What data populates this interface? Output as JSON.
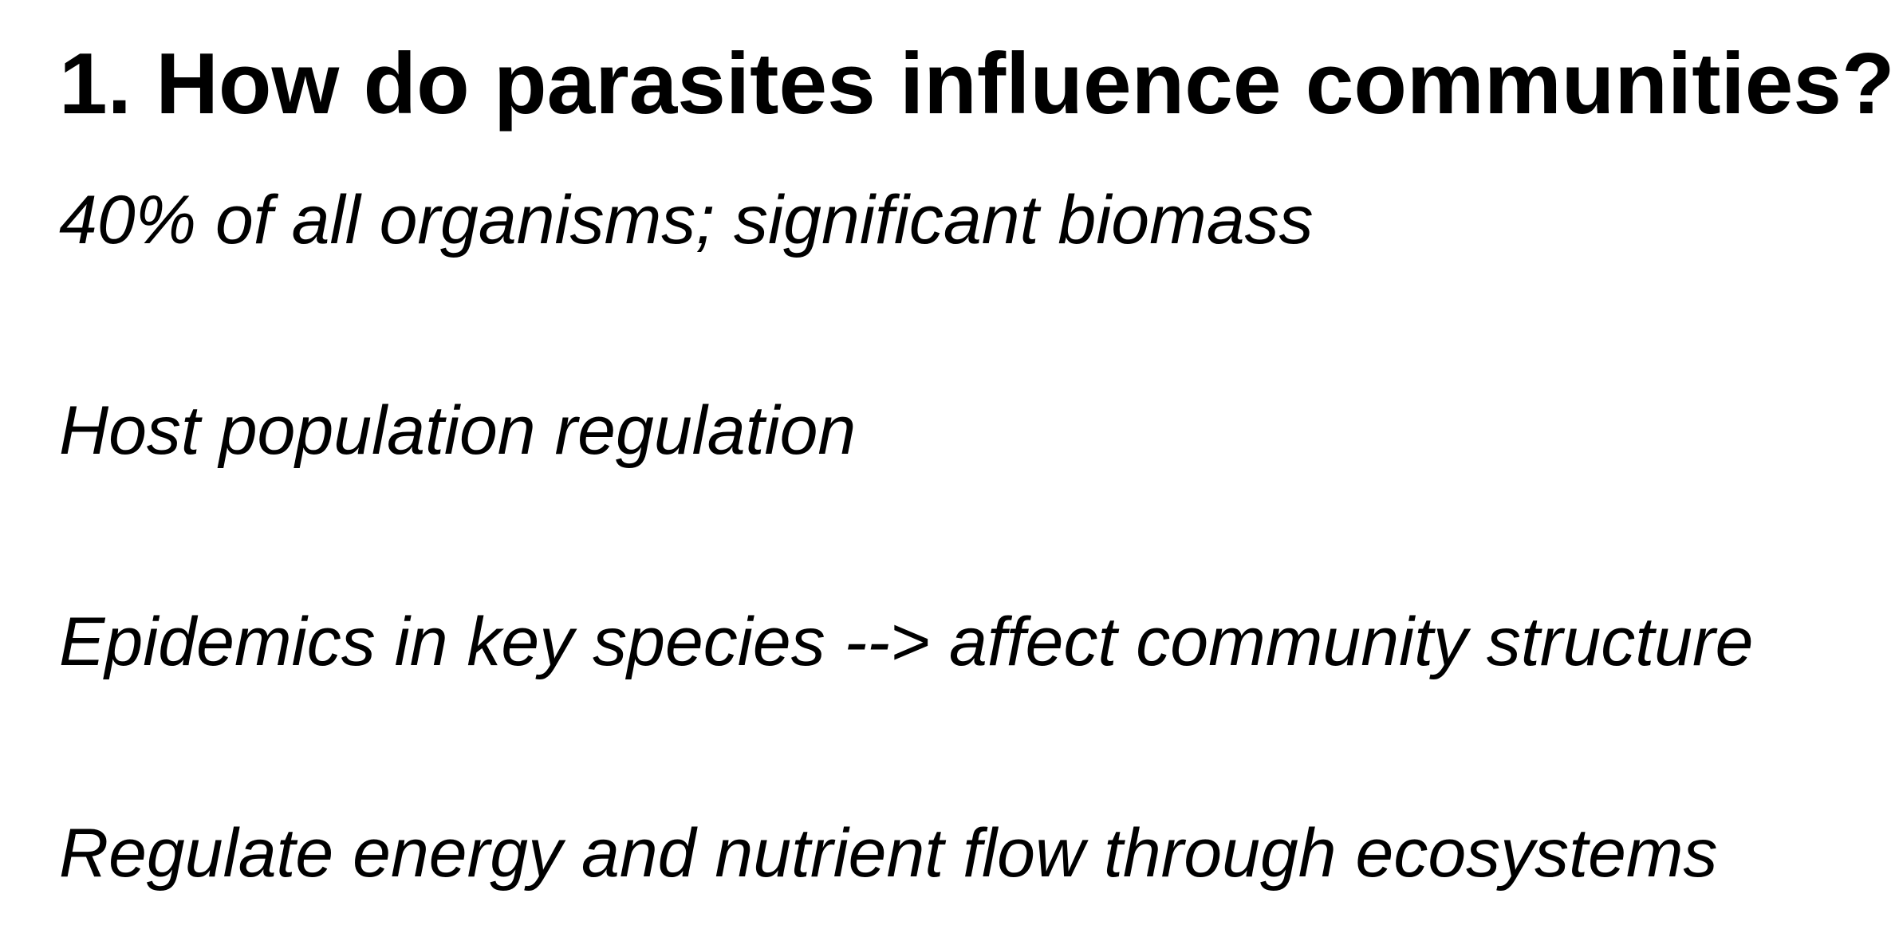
{
  "slide": {
    "title": "1. How do parasites influence communities?",
    "bullets": [
      "40% of all organisms; significant biomass",
      "Host population regulation",
      "Epidemics in key species --> affect community structure",
      "Regulate energy and nutrient flow through ecosystems"
    ]
  }
}
